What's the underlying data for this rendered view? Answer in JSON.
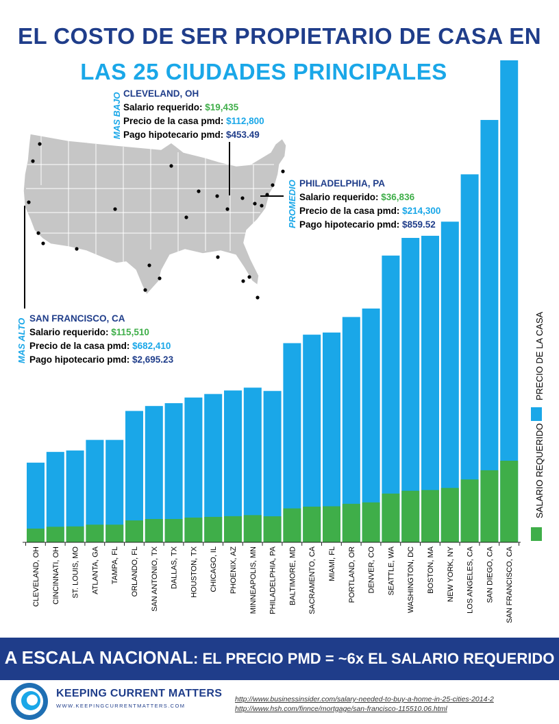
{
  "title_line1": "EL COSTO DE SER PROPIETARIO DE CASA EN",
  "title_line2": "LAS 25 CIUDADES PRINCIPALES",
  "callouts": {
    "low": {
      "tag": "MAS BAJO",
      "city": "CLEVELAND, OH",
      "salary_label": "Salario requerido: ",
      "salary": "$19,435",
      "price_label": "Precio de la casa pmd: ",
      "price": "$112,800",
      "payment_label": "Pago hipotecario pmd: ",
      "payment": "$453.49"
    },
    "mid": {
      "tag": "PROMEDIO",
      "city": "PHILADELPHIA, PA",
      "salary_label": "Salario requerido: ",
      "salary": "$36,836",
      "price_label": "Precio de la casa pmd: ",
      "price": "$214,300",
      "payment_label": "Pago hipotecario pmd: ",
      "payment": "$859.52"
    },
    "high": {
      "tag": "MAS ALTO",
      "city": "SAN FRANCISCO, CA",
      "salary_label": "Salario requerido: ",
      "salary": "$115,510",
      "price_label": "Precio de la casa pmd: ",
      "price": "$682,410",
      "payment_label": "Pago hipotecario pmd: ",
      "payment": "$2,695.23"
    }
  },
  "colors": {
    "navy": "#1f3d8a",
    "blue": "#1aa7e8",
    "green": "#3fae49",
    "map_fill": "#c6c6c6"
  },
  "chart_data": {
    "type": "bar",
    "stacked": "overlay",
    "categories": [
      "CLEVELAND, OH",
      "CINCINNATI, OH",
      "ST. LOUIS, MO",
      "ATLANTA, GA",
      "TAMPA, FL",
      "ORLANDO, FL",
      "SAN ANTONIO, TX",
      "DALLAS, TX",
      "HOUSTON, TX",
      "CHICAGO, IL",
      "PHOENIX, AZ",
      "MINNEAPOLIS, MN",
      "PHILADELPHIA, PA",
      "BALTIMORE, MD",
      "SACRAMENTO, CA",
      "MIAMI, FL",
      "PORTLAND, OR",
      "DENVER, CO",
      "SEATTLE, WA",
      "WASHINGTON, DC",
      "BOSTON, MA",
      "NEW YORK, NY",
      "LOS ANGELES, CA",
      "SAN DIEGO, CA",
      "SAN FRANCISCO, CA"
    ],
    "series": [
      {
        "name": "PRECIO DE LA CASA",
        "color": "#1aa7e8",
        "values": [
          112800,
          128000,
          130000,
          145000,
          145000,
          186000,
          193000,
          197000,
          205000,
          210000,
          215000,
          219000,
          214300,
          282000,
          294000,
          297000,
          319000,
          331000,
          406000,
          431000,
          434000,
          454000,
          521000,
          598000,
          682410
        ]
      },
      {
        "name": "SALARIO REQUERIDO",
        "color": "#3fae49",
        "values": [
          19435,
          22000,
          22500,
          25000,
          25000,
          31000,
          33000,
          33000,
          35000,
          36000,
          37000,
          38500,
          36836,
          48000,
          50500,
          51000,
          54500,
          56500,
          69000,
          73000,
          74000,
          77000,
          89000,
          102000,
          115510
        ]
      }
    ],
    "ylim": [
      0,
      700000
    ],
    "legend": "right-vertical"
  },
  "banner": {
    "big": "A ESCALA NACIONAL",
    "small": ": EL PRECIO PMD = ~6x EL SALARIO REQUERIDO"
  },
  "logo": {
    "name": "KEEPING CURRENT MATTERS",
    "url": "WWW.KEEPINGCURRENTMATTERS.COM"
  },
  "sources": [
    "http://www.businessinsider.com/salary-needed-to-buy-a-home-in-25-cities-2014-2",
    "http://www.hsh.com/finnce/mortgage/san-francisco-115510.06.html"
  ]
}
